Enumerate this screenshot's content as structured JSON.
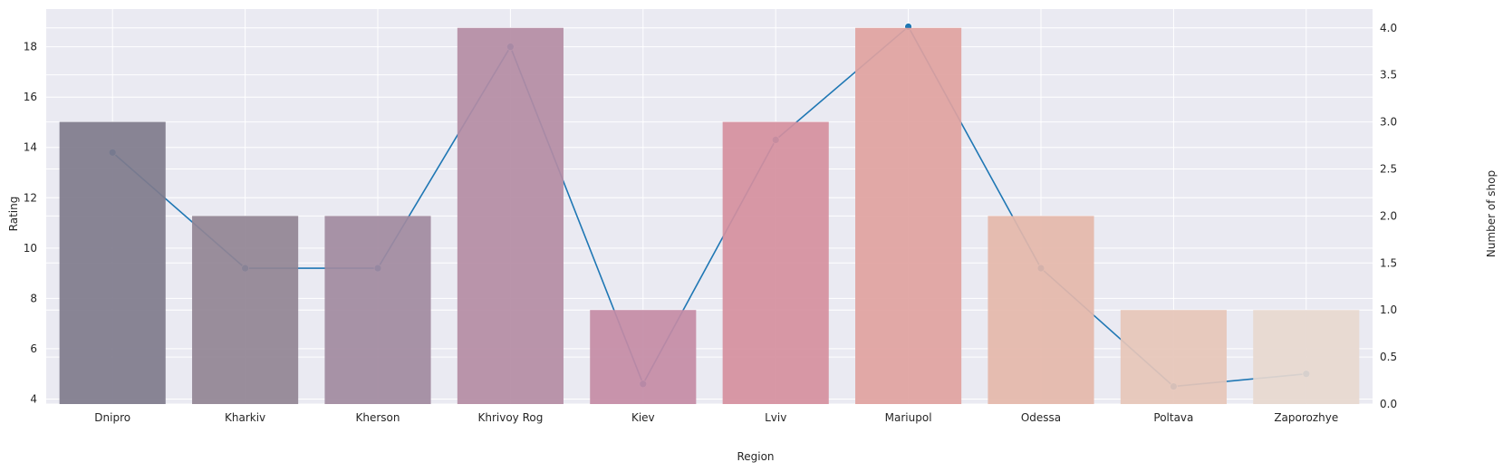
{
  "chart_data": {
    "type": "bar",
    "xlabel": "Region",
    "ylabel": "Rating",
    "ylabel_right": "Number of shop",
    "categories": [
      "Dnipro",
      "Kharkiv",
      "Kherson",
      "Khrivoy Rog",
      "Kiev",
      "Lviv",
      "Mariupol",
      "Odessa",
      "Poltava",
      "Zaporozhye"
    ],
    "bar_series": {
      "axis": "right",
      "values": [
        3,
        2,
        2,
        4,
        1,
        3,
        4,
        2,
        1,
        1
      ],
      "colors": [
        "#7f7b8c",
        "#918494",
        "#a18a9f",
        "#b48ca4",
        "#c48ba5",
        "#d58f9e",
        "#dfa2a0",
        "#e4b7aa",
        "#e6c6b9",
        "#e7d8cf"
      ]
    },
    "line_series": {
      "axis": "left",
      "values": [
        13.8,
        9.2,
        9.2,
        18.0,
        4.6,
        14.3,
        18.8,
        9.2,
        4.5,
        5.0
      ],
      "color": "#1f77b4"
    },
    "ylim": [
      3.8,
      19.5
    ],
    "ylim_right": [
      0,
      4.2
    ],
    "yticks": [
      4,
      6,
      8,
      10,
      12,
      14,
      16,
      18
    ],
    "yticks_right": [
      "0.0",
      "0.5",
      "1.0",
      "1.5",
      "2.0",
      "2.5",
      "3.0",
      "3.5",
      "4.0"
    ],
    "grid": true,
    "background": "#eaeaf2"
  }
}
